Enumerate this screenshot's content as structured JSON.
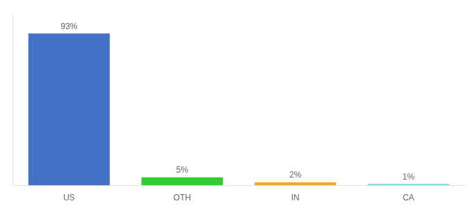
{
  "chart_data": {
    "type": "bar",
    "categories": [
      "US",
      "OTH",
      "IN",
      "CA"
    ],
    "values": [
      93,
      5,
      2,
      1
    ],
    "value_labels": [
      "93%",
      "5%",
      "2%",
      "1%"
    ],
    "colors": [
      "#4472c4",
      "#33cc33",
      "#f0a830",
      "#87ceeb"
    ],
    "ylim": [
      0,
      105
    ],
    "grid": false,
    "data_labels": true,
    "tick_labels": "x"
  }
}
